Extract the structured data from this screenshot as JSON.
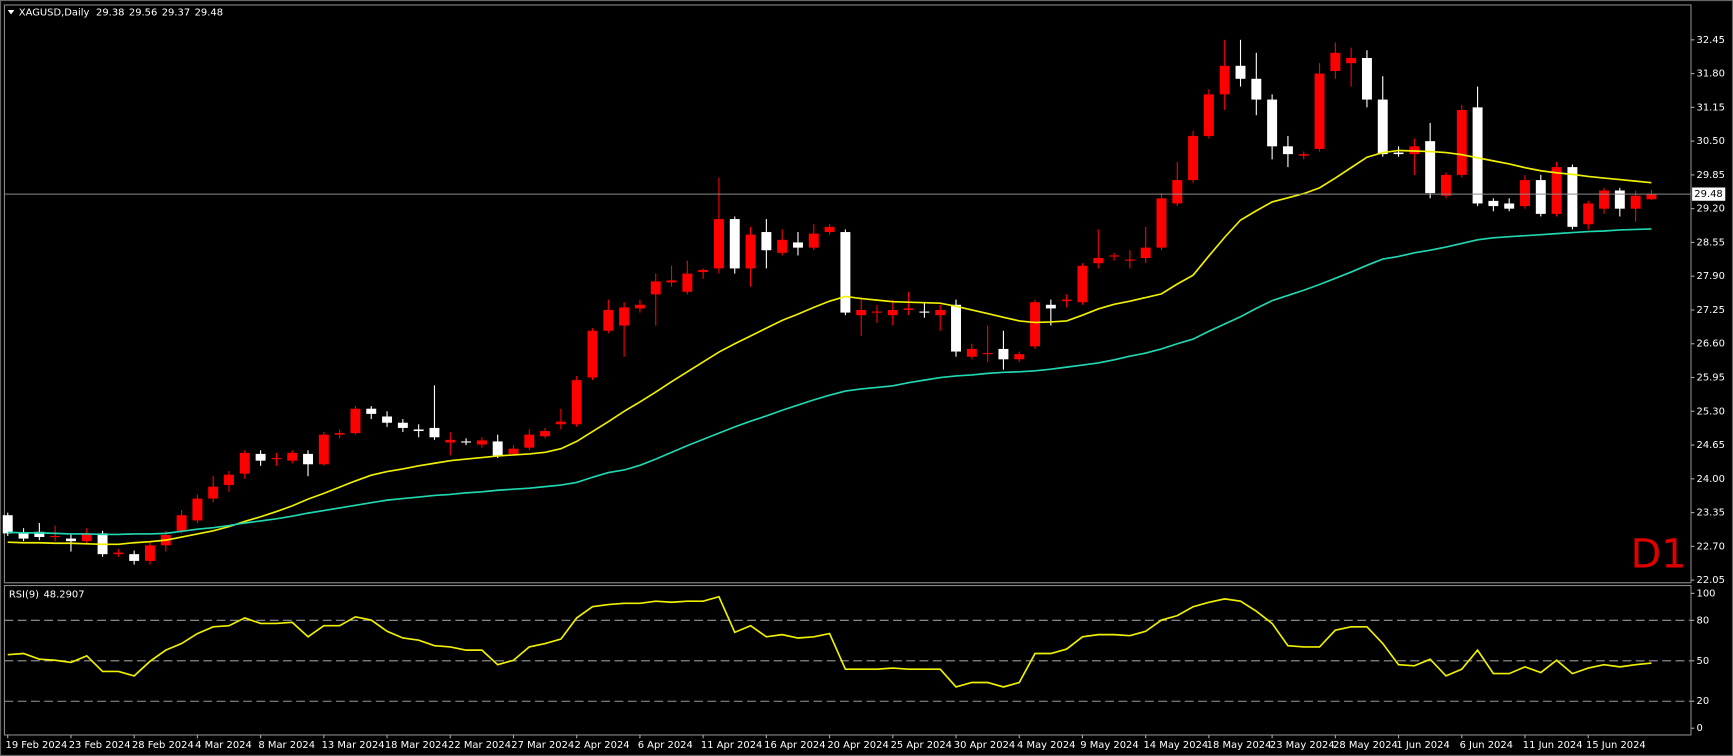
{
  "chart_data": {
    "type": "candlestick",
    "x": [
      "19 Feb 2024",
      null,
      null,
      null,
      "23 Feb 2024",
      null,
      null,
      null,
      "28 Feb 2024",
      null,
      null,
      null,
      "4 Mar 2024",
      null,
      null,
      null,
      "8 Mar 2024",
      null,
      null,
      null,
      "13 Mar 2024",
      null,
      null,
      null,
      "18 Mar 2024",
      null,
      null,
      null,
      "22 Mar 2024",
      null,
      null,
      null,
      "27 Mar 2024",
      null,
      null,
      null,
      "2 Apr 2024",
      null,
      null,
      null,
      "6 Apr 2024",
      null,
      null,
      null,
      "11 Apr 2024",
      null,
      null,
      null,
      "16 Apr 2024",
      null,
      null,
      null,
      "20 Apr 2024",
      null,
      null,
      null,
      "25 Apr 2024",
      null,
      null,
      null,
      "30 Apr 2024",
      null,
      null,
      null,
      "4 May 2024",
      null,
      null,
      null,
      "9 May 2024",
      null,
      null,
      null,
      "14 May 2024",
      null,
      null,
      null,
      "18 May 2024",
      null,
      null,
      null,
      "23 May 2024",
      null,
      null,
      null,
      "28 May 2024",
      null,
      null,
      null,
      "1 Jun 2024",
      null,
      null,
      null,
      "6 Jun 2024",
      null,
      null,
      null,
      "11 Jun 2024",
      null,
      null,
      null,
      "15 Jun 2024",
      null,
      null,
      null,
      null
    ],
    "series": [
      {
        "name": "XAGUSD,Daily",
        "up_color": "#ff0000",
        "down_color": "#ffffff",
        "open": [
          23.3,
          22.95,
          22.98,
          22.88,
          22.85,
          22.8,
          22.95,
          22.55,
          22.55,
          22.42,
          22.72,
          23.0,
          23.2,
          23.62,
          23.88,
          24.1,
          24.48,
          24.38,
          24.35,
          24.48,
          24.28,
          24.85,
          24.88,
          25.35,
          25.2,
          25.08,
          24.95,
          24.98,
          24.7,
          24.72,
          24.66,
          24.72,
          24.48,
          24.6,
          24.82,
          25.05,
          25.05,
          25.95,
          26.85,
          26.95,
          27.28,
          27.55,
          27.78,
          27.6,
          27.98,
          28.05,
          29.0,
          28.05,
          28.75,
          28.35,
          28.55,
          28.45,
          28.75,
          28.75,
          27.15,
          27.2,
          27.15,
          27.25,
          27.22,
          27.15,
          27.35,
          26.35,
          26.4,
          26.5,
          26.3,
          26.55,
          27.35,
          27.42,
          27.4,
          28.15,
          28.28,
          28.2,
          28.25,
          28.45,
          29.3,
          29.75,
          30.6,
          31.4,
          31.95,
          31.7,
          31.3,
          30.4,
          30.22,
          30.35,
          31.85,
          32.0,
          32.1,
          31.3,
          30.28,
          30.25,
          30.5,
          29.45,
          29.85,
          31.15,
          29.35,
          29.3,
          29.25,
          29.75,
          29.1,
          30.0,
          28.9,
          29.2,
          29.55,
          29.2,
          29.38
        ],
        "high": [
          23.35,
          23.05,
          23.15,
          23.1,
          22.95,
          23.05,
          23.0,
          22.65,
          22.62,
          22.8,
          23.0,
          23.4,
          23.7,
          24.05,
          24.15,
          24.55,
          24.55,
          24.5,
          24.55,
          24.55,
          24.9,
          24.95,
          25.4,
          25.4,
          25.3,
          25.15,
          25.05,
          25.8,
          24.9,
          24.78,
          24.8,
          24.85,
          24.65,
          24.95,
          24.98,
          25.35,
          25.98,
          26.9,
          27.45,
          27.4,
          27.45,
          27.95,
          28.1,
          28.2,
          28.05,
          29.8,
          29.05,
          28.85,
          29.0,
          28.8,
          28.75,
          28.9,
          28.9,
          28.8,
          27.5,
          27.35,
          27.45,
          27.6,
          27.4,
          27.35,
          27.45,
          26.6,
          26.95,
          26.85,
          26.45,
          27.45,
          27.45,
          27.55,
          28.15,
          28.8,
          28.35,
          28.4,
          28.85,
          29.5,
          30.1,
          30.7,
          31.5,
          32.45,
          32.45,
          32.2,
          31.4,
          30.6,
          30.3,
          32.0,
          32.4,
          32.3,
          32.25,
          31.75,
          30.4,
          30.55,
          30.85,
          29.9,
          31.2,
          31.55,
          29.4,
          29.4,
          29.85,
          29.85,
          30.1,
          30.05,
          29.35,
          29.6,
          29.6,
          29.55,
          29.56
        ],
        "low": [
          22.9,
          22.8,
          22.82,
          22.8,
          22.6,
          22.75,
          22.5,
          22.5,
          22.35,
          22.35,
          22.6,
          22.95,
          23.15,
          23.55,
          23.75,
          24.0,
          24.25,
          24.25,
          24.3,
          24.05,
          24.25,
          24.78,
          24.85,
          25.15,
          25.0,
          24.9,
          24.8,
          24.75,
          24.45,
          24.65,
          24.6,
          24.4,
          24.45,
          24.55,
          24.78,
          24.95,
          25.0,
          25.9,
          26.8,
          26.35,
          27.2,
          26.95,
          27.7,
          27.55,
          27.85,
          27.95,
          27.95,
          27.7,
          28.05,
          28.3,
          28.3,
          28.4,
          28.7,
          27.15,
          26.75,
          27.0,
          26.95,
          27.15,
          27.1,
          26.85,
          26.35,
          26.3,
          26.25,
          26.1,
          26.25,
          26.5,
          26.95,
          27.3,
          27.35,
          28.05,
          28.2,
          28.05,
          28.15,
          28.4,
          29.25,
          29.7,
          30.55,
          31.1,
          31.55,
          31.0,
          30.15,
          30.0,
          30.15,
          30.3,
          31.7,
          31.55,
          31.15,
          30.2,
          30.2,
          29.85,
          29.4,
          29.4,
          29.8,
          29.25,
          29.15,
          29.15,
          29.2,
          29.05,
          29.05,
          28.8,
          28.8,
          29.1,
          29.05,
          28.95,
          29.37
        ],
        "close": [
          22.95,
          22.85,
          22.88,
          22.9,
          22.8,
          22.95,
          22.55,
          22.58,
          22.42,
          22.72,
          22.92,
          23.3,
          23.62,
          23.85,
          24.08,
          24.5,
          24.35,
          24.4,
          24.5,
          24.28,
          24.85,
          24.88,
          25.35,
          25.25,
          25.08,
          24.98,
          24.92,
          24.8,
          24.75,
          24.7,
          24.74,
          24.45,
          24.58,
          24.85,
          24.92,
          25.1,
          25.9,
          26.85,
          27.25,
          27.3,
          27.35,
          27.8,
          27.82,
          27.95,
          28.02,
          29.0,
          28.05,
          28.7,
          28.4,
          28.6,
          28.45,
          28.72,
          28.85,
          27.2,
          27.25,
          27.22,
          27.25,
          27.28,
          27.2,
          27.25,
          26.45,
          26.5,
          26.42,
          26.3,
          26.4,
          27.4,
          27.28,
          27.45,
          28.1,
          28.25,
          28.3,
          28.22,
          28.45,
          29.4,
          29.75,
          30.6,
          31.4,
          31.95,
          31.7,
          31.3,
          30.4,
          30.25,
          30.25,
          31.8,
          32.2,
          32.1,
          31.3,
          30.25,
          30.25,
          30.4,
          29.5,
          29.85,
          31.1,
          29.3,
          29.25,
          29.2,
          29.75,
          29.1,
          30.0,
          28.85,
          29.3,
          29.55,
          29.2,
          29.45,
          29.48
        ]
      }
    ],
    "overlays": [
      {
        "color": "#f0f000",
        "values": [
          22.78,
          22.77,
          22.77,
          22.76,
          22.76,
          22.75,
          22.74,
          22.74,
          22.77,
          22.79,
          22.82,
          22.88,
          22.94,
          23.0,
          23.08,
          23.18,
          23.27,
          23.37,
          23.48,
          23.61,
          23.72,
          23.84,
          23.96,
          24.07,
          24.14,
          24.19,
          24.25,
          24.3,
          24.35,
          24.38,
          24.41,
          24.44,
          24.46,
          24.48,
          24.51,
          24.58,
          24.72,
          24.91,
          25.1,
          25.3,
          25.48,
          25.67,
          25.87,
          26.06,
          26.25,
          26.44,
          26.6,
          26.75,
          26.9,
          27.05,
          27.17,
          27.3,
          27.42,
          27.51,
          27.47,
          27.44,
          27.41,
          27.4,
          27.39,
          27.38,
          27.32,
          27.25,
          27.18,
          27.11,
          27.04,
          27.01,
          27.02,
          27.04,
          27.15,
          27.27,
          27.36,
          27.42,
          27.49,
          27.56,
          27.75,
          27.92,
          28.29,
          28.65,
          28.98,
          29.16,
          29.33,
          29.41,
          29.49,
          29.6,
          29.79,
          29.99,
          30.19,
          30.28,
          30.32,
          30.31,
          30.3,
          30.28,
          30.24,
          30.18,
          30.12,
          30.06,
          29.99,
          29.93,
          29.89,
          29.86,
          29.82,
          29.79,
          29.76,
          29.73,
          29.7
        ]
      },
      {
        "color": "#20d8b0",
        "values": [
          22.97,
          22.96,
          22.96,
          22.95,
          22.94,
          22.94,
          22.93,
          22.93,
          22.94,
          22.94,
          22.95,
          22.99,
          23.03,
          23.06,
          23.1,
          23.15,
          23.19,
          23.23,
          23.28,
          23.34,
          23.39,
          23.44,
          23.49,
          23.54,
          23.59,
          23.62,
          23.65,
          23.68,
          23.7,
          23.73,
          23.75,
          23.78,
          23.8,
          23.82,
          23.85,
          23.88,
          23.93,
          24.03,
          24.12,
          24.17,
          24.26,
          24.38,
          24.51,
          24.64,
          24.76,
          24.88,
          25.0,
          25.11,
          25.21,
          25.32,
          25.42,
          25.52,
          25.61,
          25.69,
          25.73,
          25.76,
          25.79,
          25.85,
          25.9,
          25.95,
          25.98,
          26.0,
          26.03,
          26.05,
          26.06,
          26.08,
          26.11,
          26.15,
          26.19,
          26.23,
          26.29,
          26.36,
          26.42,
          26.5,
          26.6,
          26.69,
          26.84,
          26.98,
          27.12,
          27.28,
          27.43,
          27.53,
          27.63,
          27.74,
          27.86,
          27.98,
          28.11,
          28.23,
          28.28,
          28.35,
          28.4,
          28.46,
          28.53,
          28.6,
          28.64,
          28.66,
          28.68,
          28.7,
          28.72,
          28.74,
          28.76,
          28.77,
          28.79,
          28.8,
          28.81
        ]
      }
    ],
    "ylim": [
      22.01,
      33.11
    ],
    "yticks": [
      32.45,
      {
        "value": 31.8,
        "label": "31.80"
      },
      31.15,
      {
        "value": 30.5,
        "label": "30.50"
      },
      29.85,
      {
        "value": 29.2,
        "label": "29.20"
      },
      28.55,
      {
        "value": 27.9,
        "label": "27.90"
      },
      27.25,
      {
        "value": 26.6,
        "label": "26.60"
      },
      25.95,
      {
        "value": 25.3,
        "label": "25.30"
      },
      24.65,
      {
        "value": 24,
        "label": "24.00"
      },
      23.35,
      {
        "value": 22.7,
        "label": "22.70"
      },
      22.05
    ],
    "timeframe_label": "D1",
    "rsi": {
      "type": "line",
      "label": "RSI(9)",
      "color": "#f0f000",
      "values": [
        54.5,
        55.4,
        51.2,
        50.4,
        48.8,
        53.7,
        42.1,
        42.1,
        38.8,
        49.6,
        57.9,
        62.8,
        70.2,
        75.2,
        76.0,
        81.8,
        77.7,
        77.7,
        78.5,
        67.8,
        76.0,
        76.0,
        82.6,
        80.2,
        71.9,
        66.9,
        65.3,
        61.2,
        60.3,
        57.9,
        57.9,
        47.1,
        50.4,
        60.3,
        62.8,
        66.1,
        81.8,
        90.1,
        91.7,
        92.6,
        92.6,
        94.2,
        93.4,
        94.2,
        94.2,
        97.5,
        71.1,
        76.0,
        67.8,
        69.4,
        66.9,
        67.8,
        70.2,
        43.8,
        43.8,
        43.8,
        44.6,
        43.8,
        43.8,
        43.8,
        30.6,
        33.9,
        33.9,
        30.6,
        33.9,
        55.4,
        55.4,
        58.7,
        67.8,
        69.4,
        69.4,
        68.6,
        71.9,
        80.2,
        83.5,
        90.1,
        93.4,
        95.9,
        94.2,
        86.8,
        77.7,
        61.2,
        60.3,
        60.3,
        72.7,
        75.2,
        75.2,
        62.8,
        47.1,
        46.3,
        51.2,
        38.8,
        43.8,
        57.9,
        40.5,
        40.5,
        45.5,
        41.3,
        50.4,
        40.5,
        44.6,
        47.1,
        45.5,
        47.1,
        48.2907
      ],
      "ylim": [
        -5,
        105.8
      ],
      "yticks": [
        100,
        80,
        50,
        20,
        0
      ],
      "levels": [
        80,
        50,
        20
      ]
    }
  }
}
